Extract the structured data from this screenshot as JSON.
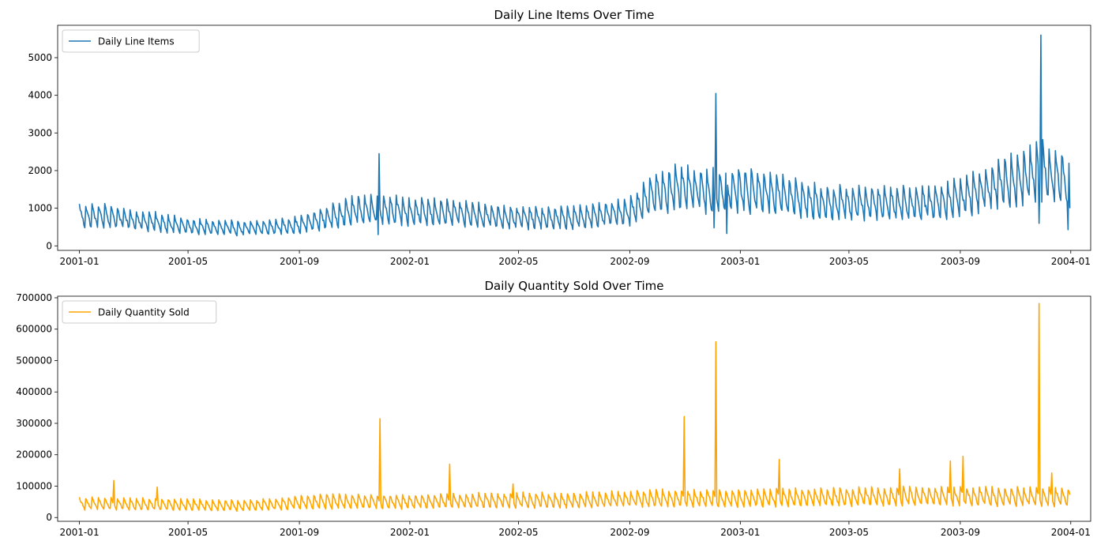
{
  "chart_data": [
    {
      "type": "line",
      "title": "Daily Line Items Over Time",
      "xlabel": "",
      "ylabel": "",
      "x_range": [
        "2000-12-08",
        "2004-01-23"
      ],
      "xticks": [
        "2001-01",
        "2001-05",
        "2001-09",
        "2002-01",
        "2002-05",
        "2002-09",
        "2003-01",
        "2003-05",
        "2003-09",
        "2004-01"
      ],
      "ylim": [
        -120,
        5860
      ],
      "yticks": [
        0,
        1000,
        2000,
        3000,
        4000,
        5000
      ],
      "ytick_labels": [
        "0",
        "1000",
        "2000",
        "3000",
        "4000",
        "5000"
      ],
      "grid": false,
      "legend_position": "upper-left",
      "series": [
        {
          "name": "Daily Line Items",
          "color": "#1f77b4",
          "daily_from": "2001-01-01",
          "daily_to": "2003-12-31",
          "weekly_cycle": true,
          "points": [
            [
              "2001-01-01",
              800
            ],
            [
              "2001-02-01",
              800
            ],
            [
              "2001-03-01",
              700
            ],
            [
              "2001-04-01",
              620
            ],
            [
              "2001-05-01",
              520
            ],
            [
              "2001-06-01",
              490
            ],
            [
              "2001-07-01",
              470
            ],
            [
              "2001-08-01",
              500
            ],
            [
              "2001-09-01",
              560
            ],
            [
              "2001-10-01",
              750
            ],
            [
              "2001-11-01",
              950
            ],
            [
              "2001-12-01",
              1000
            ],
            [
              "2002-01-01",
              900
            ],
            [
              "2002-02-01",
              900
            ],
            [
              "2002-03-01",
              860
            ],
            [
              "2002-04-01",
              800
            ],
            [
              "2002-05-01",
              760
            ],
            [
              "2002-06-01",
              740
            ],
            [
              "2002-07-01",
              750
            ],
            [
              "2002-08-01",
              830
            ],
            [
              "2002-09-01",
              930
            ],
            [
              "2002-10-01",
              1450
            ],
            [
              "2002-11-01",
              1550
            ],
            [
              "2002-12-01",
              1450
            ],
            [
              "2003-01-01",
              1500
            ],
            [
              "2003-02-01",
              1450
            ],
            [
              "2003-03-01",
              1300
            ],
            [
              "2003-04-01",
              1150
            ],
            [
              "2003-05-01",
              1150
            ],
            [
              "2003-06-01",
              1150
            ],
            [
              "2003-07-01",
              1150
            ],
            [
              "2003-08-01",
              1150
            ],
            [
              "2003-09-01",
              1300
            ],
            [
              "2003-10-01",
              1550
            ],
            [
              "2003-11-01",
              1800
            ],
            [
              "2003-12-01",
              2000
            ],
            [
              "2003-12-31",
              1800
            ]
          ],
          "amplitude_fraction": 0.4,
          "spikes": [
            [
              "2001-11-28",
              2450
            ],
            [
              "2001-11-27",
              300
            ],
            [
              "2002-12-05",
              4050
            ],
            [
              "2002-12-03",
              480
            ],
            [
              "2002-12-17",
              330
            ],
            [
              "2003-11-29",
              5600
            ],
            [
              "2003-11-27",
              600
            ],
            [
              "2003-12-29",
              430
            ],
            [
              "2003-12-31",
              1000
            ]
          ]
        }
      ]
    },
    {
      "type": "line",
      "title": "Daily Quantity Sold Over Time",
      "xlabel": "",
      "ylabel": "",
      "x_range": [
        "2000-12-08",
        "2004-01-23"
      ],
      "xticks": [
        "2001-01",
        "2001-05",
        "2001-09",
        "2002-01",
        "2002-05",
        "2002-09",
        "2003-01",
        "2003-05",
        "2003-09",
        "2004-01"
      ],
      "ylim": [
        -12000,
        705000
      ],
      "yticks": [
        0,
        100000,
        200000,
        300000,
        400000,
        500000,
        600000,
        700000
      ],
      "ytick_labels": [
        "0",
        "100000",
        "200000",
        "300000",
        "400000",
        "500000",
        "600000",
        "700000"
      ],
      "grid": false,
      "legend_position": "upper-left",
      "series": [
        {
          "name": "Daily Quantity Sold",
          "color": "#ffa500",
          "daily_from": "2001-01-01",
          "daily_to": "2003-12-31",
          "weekly_cycle": true,
          "points": [
            [
              "2001-01-01",
              45000
            ],
            [
              "2001-04-01",
              42000
            ],
            [
              "2001-07-01",
              38000
            ],
            [
              "2001-10-01",
              52000
            ],
            [
              "2002-01-01",
              50000
            ],
            [
              "2002-04-01",
              55000
            ],
            [
              "2002-07-01",
              55000
            ],
            [
              "2002-10-01",
              62000
            ],
            [
              "2003-01-01",
              62000
            ],
            [
              "2003-04-01",
              65000
            ],
            [
              "2003-07-01",
              68000
            ],
            [
              "2003-10-01",
              68000
            ],
            [
              "2003-12-31",
              65000
            ]
          ],
          "amplitude_fraction": 0.45,
          "spikes": [
            [
              "2001-02-08",
              118000
            ],
            [
              "2001-03-28",
              97000
            ],
            [
              "2001-11-29",
              315000
            ],
            [
              "2002-02-14",
              170000
            ],
            [
              "2002-04-25",
              107000
            ],
            [
              "2002-10-31",
              322000
            ],
            [
              "2002-12-05",
              560000
            ],
            [
              "2003-02-13",
              185000
            ],
            [
              "2003-06-26",
              155000
            ],
            [
              "2003-08-21",
              180000
            ],
            [
              "2003-09-04",
              195000
            ],
            [
              "2003-11-27",
              682000
            ],
            [
              "2003-12-11",
              142000
            ]
          ]
        }
      ]
    }
  ]
}
